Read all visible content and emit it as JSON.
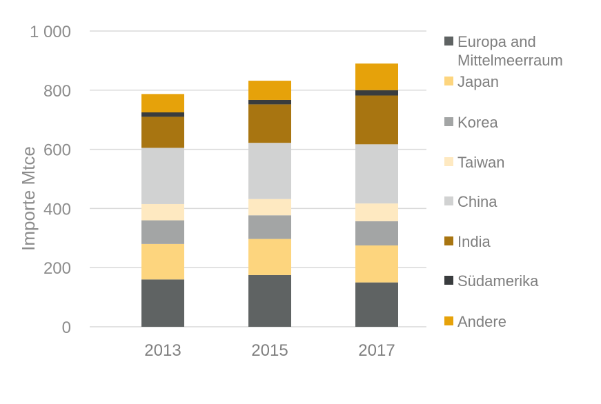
{
  "chart_data": {
    "type": "bar",
    "stacked": true,
    "title": "",
    "xlabel": "",
    "ylabel": "Importe Mtce",
    "ylim": [
      0,
      1000
    ],
    "yticks": [
      0,
      200,
      400,
      600,
      800,
      1000
    ],
    "ytick_labels": [
      "0",
      "200",
      "400",
      "600",
      "800",
      "1 000"
    ],
    "grid": true,
    "legend_position": "right",
    "categories": [
      "2013",
      "2015",
      "2017"
    ],
    "series": [
      {
        "name": "Europa and Mittelmeerraum",
        "name_lines": [
          "Europa and",
          "Mittelmeerraum"
        ],
        "color": "#5f6363",
        "values": [
          160,
          175,
          150
        ]
      },
      {
        "name": "Japan",
        "name_lines": [
          "Japan"
        ],
        "color": "#fdd57e",
        "values": [
          120,
          122,
          125
        ]
      },
      {
        "name": "Korea",
        "name_lines": [
          "Korea"
        ],
        "color": "#a3a5a5",
        "values": [
          80,
          80,
          82
        ]
      },
      {
        "name": "Taiwan",
        "name_lines": [
          "Taiwan"
        ],
        "color": "#fee9c1",
        "values": [
          55,
          55,
          60
        ]
      },
      {
        "name": "China",
        "name_lines": [
          "China"
        ],
        "color": "#d1d2d2",
        "values": [
          190,
          190,
          200
        ]
      },
      {
        "name": "India",
        "name_lines": [
          "India"
        ],
        "color": "#a87511",
        "values": [
          105,
          130,
          165
        ]
      },
      {
        "name": "Südamerika",
        "name_lines": [
          "Südamerika"
        ],
        "color": "#393c3e",
        "values": [
          15,
          15,
          18
        ]
      },
      {
        "name": "Andere",
        "name_lines": [
          "Andere"
        ],
        "color": "#e6a20a",
        "values": [
          62,
          65,
          90
        ]
      }
    ]
  }
}
